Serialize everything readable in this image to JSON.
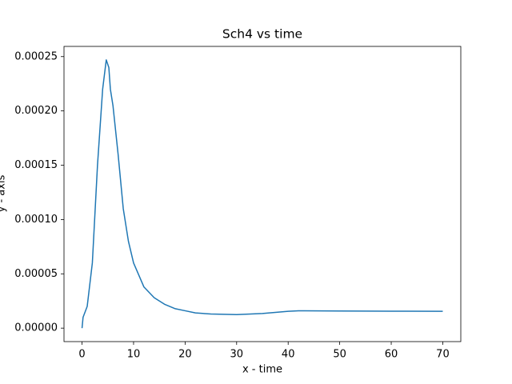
{
  "chart_data": {
    "type": "line",
    "title": "Sch4 vs time",
    "xlabel": "x - time",
    "ylabel": "y - axis",
    "x": [
      0,
      0.2,
      1,
      2,
      3,
      4,
      4.7,
      5.2,
      5.5,
      6,
      7,
      8,
      9,
      10,
      12,
      14,
      16,
      18,
      20,
      22,
      25,
      30,
      35,
      40,
      42,
      50,
      60,
      70
    ],
    "series": [
      {
        "name": "Sch4",
        "color": "#1f77b4",
        "values": [
          0,
          1e-05,
          2e-05,
          6e-05,
          0.00015,
          0.00022,
          0.000247,
          0.00024,
          0.00022,
          0.000205,
          0.00016,
          0.00011,
          8e-05,
          6e-05,
          3.8e-05,
          2.8e-05,
          2.2e-05,
          1.8e-05,
          1.6e-05,
          1.4e-05,
          1.3e-05,
          1.25e-05,
          1.35e-05,
          1.55e-05,
          1.6e-05,
          1.58e-05,
          1.56e-05,
          1.55e-05
        ]
      }
    ],
    "xlim": [
      -3.5,
      73.5
    ],
    "xticks": [
      0,
      10,
      20,
      30,
      40,
      50,
      60,
      70
    ],
    "ylim": [
      -1.24e-05,
      0.0002594
    ],
    "yticks": [
      {
        "value": 0,
        "label": "0.00000"
      },
      {
        "value": 5e-05,
        "label": "0.00005"
      },
      {
        "value": 0.0001,
        "label": "0.00010"
      },
      {
        "value": 0.00015,
        "label": "0.00015"
      },
      {
        "value": 0.0002,
        "label": "0.00020"
      },
      {
        "value": 0.00025,
        "label": "0.00025"
      }
    ],
    "grid": false
  }
}
